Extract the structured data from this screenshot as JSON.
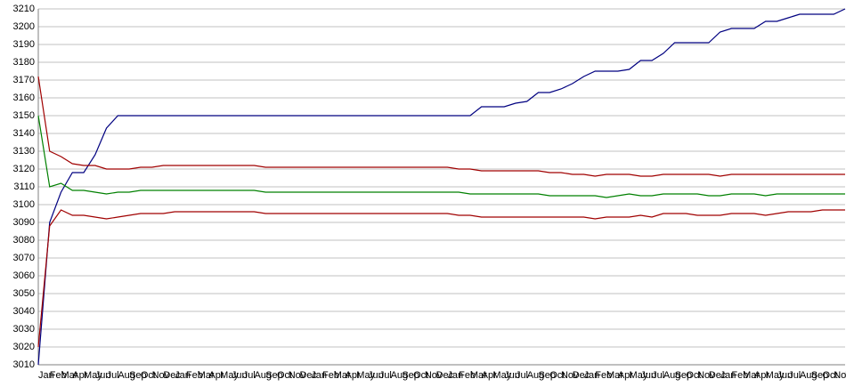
{
  "chart_data": {
    "type": "line",
    "categories": [
      "Jan",
      "Feb",
      "Mar",
      "Apr",
      "May",
      "Jun",
      "Jul",
      "Aug",
      "Sep",
      "Oct",
      "Nov",
      "Dec",
      "Jan",
      "Feb",
      "Mar",
      "Apr",
      "May",
      "Jun",
      "Jul",
      "Aug",
      "Sep",
      "Oct",
      "Nov",
      "Dec",
      "Jan",
      "Feb",
      "Mar",
      "Apr",
      "May",
      "Jun",
      "Jul",
      "Aug",
      "Sep",
      "Oct",
      "Nov",
      "Dec",
      "Jan",
      "Feb",
      "Mar",
      "Apr",
      "May",
      "Jun",
      "Jul",
      "Aug",
      "Sep",
      "Oct",
      "Nov",
      "Dec",
      "Jan",
      "Feb",
      "Mar",
      "Apr",
      "May",
      "Jun",
      "Jul",
      "Aug",
      "Sep",
      "Oct",
      "Nov",
      "Dec",
      "Jan",
      "Feb",
      "Mar",
      "Apr",
      "May",
      "Jun",
      "Jul",
      "Aug",
      "Sep",
      "Oct",
      "Nov",
      "Dec"
    ],
    "series": [
      {
        "color": "#000080",
        "values": [
          3010,
          3090,
          3107,
          3118,
          3118,
          3128,
          3143,
          3150,
          3150,
          3150,
          3150,
          3150,
          3150,
          3150,
          3150,
          3150,
          3150,
          3150,
          3150,
          3150,
          3150,
          3150,
          3150,
          3150,
          3150,
          3150,
          3150,
          3150,
          3150,
          3150,
          3150,
          3150,
          3150,
          3150,
          3150,
          3150,
          3150,
          3150,
          3150,
          3155,
          3155,
          3155,
          3157,
          3158,
          3163,
          3163,
          3165,
          3168,
          3172,
          3175,
          3175,
          3175,
          3176,
          3181,
          3181,
          3185,
          3191,
          3191,
          3191,
          3191,
          3197,
          3199,
          3199,
          3199,
          3203,
          3203,
          3205,
          3207,
          3207,
          3207,
          3207,
          3210
        ]
      },
      {
        "color": "#a00000",
        "values": [
          3172,
          3130,
          3127,
          3123,
          3122,
          3122,
          3120,
          3120,
          3120,
          3121,
          3121,
          3122,
          3122,
          3122,
          3122,
          3122,
          3122,
          3122,
          3122,
          3122,
          3121,
          3121,
          3121,
          3121,
          3121,
          3121,
          3121,
          3121,
          3121,
          3121,
          3121,
          3121,
          3121,
          3121,
          3121,
          3121,
          3121,
          3120,
          3120,
          3119,
          3119,
          3119,
          3119,
          3119,
          3119,
          3118,
          3118,
          3117,
          3117,
          3116,
          3117,
          3117,
          3117,
          3116,
          3116,
          3117,
          3117,
          3117,
          3117,
          3117,
          3116,
          3117,
          3117,
          3117,
          3117,
          3117,
          3117,
          3117,
          3117,
          3117,
          3117,
          3117
        ]
      },
      {
        "color": "#008000",
        "values": [
          3150,
          3110,
          3112,
          3108,
          3108,
          3107,
          3106,
          3107,
          3107,
          3108,
          3108,
          3108,
          3108,
          3108,
          3108,
          3108,
          3108,
          3108,
          3108,
          3108,
          3107,
          3107,
          3107,
          3107,
          3107,
          3107,
          3107,
          3107,
          3107,
          3107,
          3107,
          3107,
          3107,
          3107,
          3107,
          3107,
          3107,
          3107,
          3106,
          3106,
          3106,
          3106,
          3106,
          3106,
          3106,
          3105,
          3105,
          3105,
          3105,
          3105,
          3104,
          3105,
          3106,
          3105,
          3105,
          3106,
          3106,
          3106,
          3106,
          3105,
          3105,
          3106,
          3106,
          3106,
          3105,
          3106,
          3106,
          3106,
          3106,
          3106,
          3106,
          3106
        ]
      },
      {
        "color": "#a00000",
        "values": [
          3020,
          3088,
          3097,
          3094,
          3094,
          3093,
          3092,
          3093,
          3094,
          3095,
          3095,
          3095,
          3096,
          3096,
          3096,
          3096,
          3096,
          3096,
          3096,
          3096,
          3095,
          3095,
          3095,
          3095,
          3095,
          3095,
          3095,
          3095,
          3095,
          3095,
          3095,
          3095,
          3095,
          3095,
          3095,
          3095,
          3095,
          3094,
          3094,
          3093,
          3093,
          3093,
          3093,
          3093,
          3093,
          3093,
          3093,
          3093,
          3093,
          3092,
          3093,
          3093,
          3093,
          3094,
          3093,
          3095,
          3095,
          3095,
          3094,
          3094,
          3094,
          3095,
          3095,
          3095,
          3094,
          3095,
          3096,
          3096,
          3096,
          3097,
          3097,
          3097
        ]
      }
    ],
    "ylim": [
      3010,
      3210
    ],
    "yticks": [
      3010,
      3020,
      3030,
      3040,
      3050,
      3060,
      3070,
      3080,
      3090,
      3100,
      3110,
      3120,
      3130,
      3140,
      3150,
      3160,
      3170,
      3180,
      3190,
      3200,
      3210
    ],
    "grid": true
  }
}
